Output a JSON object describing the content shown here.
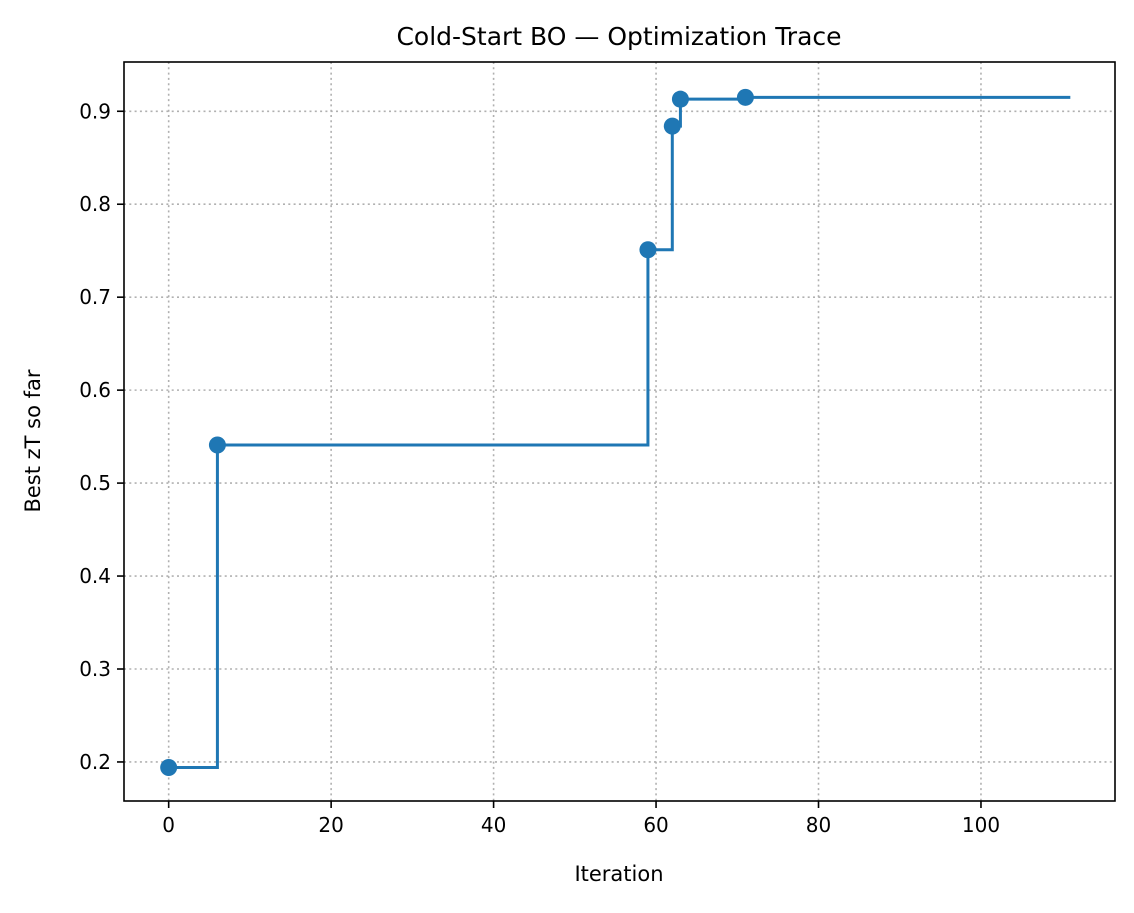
{
  "chart_data": {
    "type": "line",
    "title": "Cold-Start BO — Optimization Trace",
    "xlabel": "Iteration",
    "ylabel": "Best zT so far",
    "xlim": [
      -5.5,
      116.5
    ],
    "ylim": [
      0.158,
      0.953
    ],
    "xticks": [
      0,
      20,
      40,
      60,
      80,
      100
    ],
    "yticks": [
      0.2,
      0.3,
      0.4,
      0.5,
      0.6,
      0.7,
      0.8,
      0.9
    ],
    "xtick_labels": [
      "0",
      "20",
      "40",
      "60",
      "80",
      "100"
    ],
    "ytick_labels": [
      "0.2",
      "0.3",
      "0.4",
      "0.5",
      "0.6",
      "0.7",
      "0.8",
      "0.9"
    ],
    "grid": true,
    "grid_style": "dotted",
    "step_style": "post",
    "series": [
      {
        "color": "#1f77b4",
        "x": [
          0,
          6,
          59,
          62,
          63,
          71,
          111
        ],
        "y": [
          0.194,
          0.541,
          0.751,
          0.884,
          0.913,
          0.915,
          0.915
        ]
      }
    ],
    "markers": {
      "color": "#1f77b4",
      "x": [
        0,
        6,
        59,
        62,
        63,
        71
      ],
      "y": [
        0.194,
        0.541,
        0.751,
        0.884,
        0.913,
        0.915
      ]
    }
  }
}
